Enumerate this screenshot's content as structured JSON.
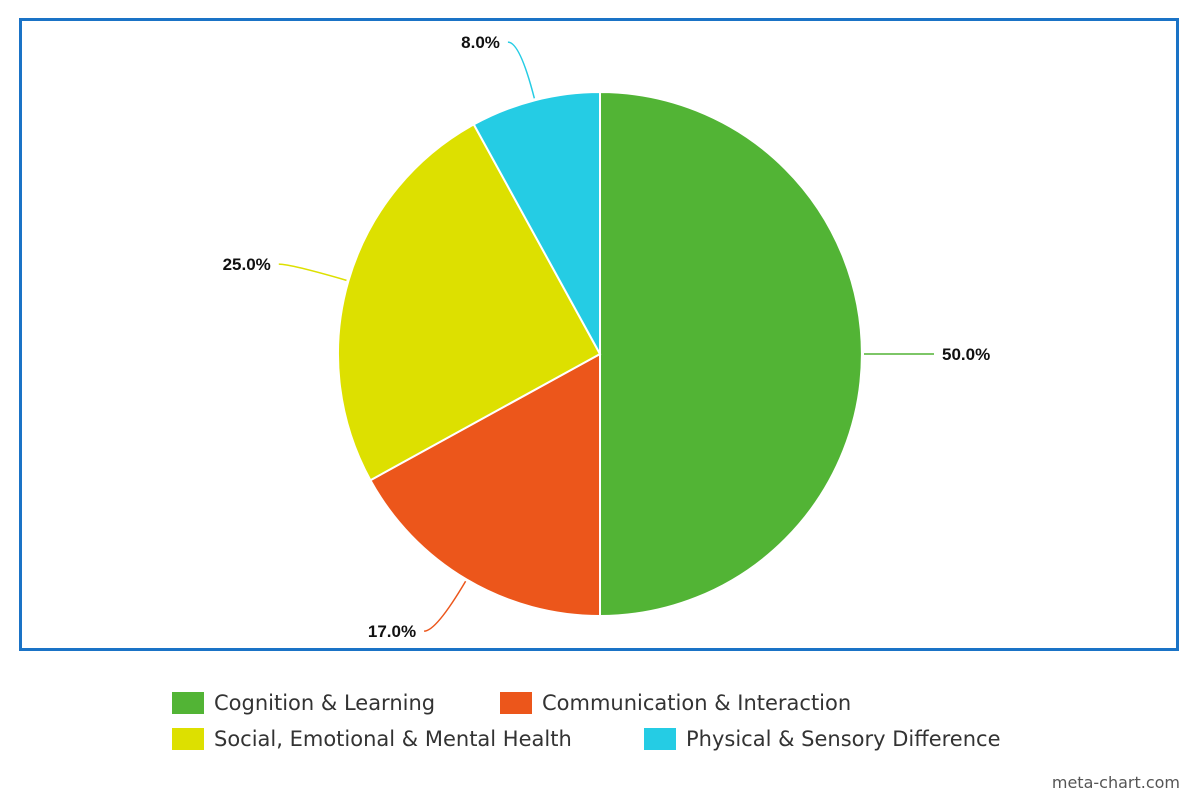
{
  "chart_data": {
    "type": "pie",
    "title": "",
    "slices": [
      {
        "label": "Cognition & Learning",
        "value": 50.0,
        "display": "50.0%",
        "color": "#52b435"
      },
      {
        "label": "Communication & Interaction",
        "value": 17.0,
        "display": "17.0%",
        "color": "#ec561b"
      },
      {
        "label": "Social, Emotional & Mental Health",
        "value": 25.0,
        "display": "25.0%",
        "color": "#dde000"
      },
      {
        "label": "Physical & Sensory Difference",
        "value": 8.0,
        "display": "8.0%",
        "color": "#25cce4"
      }
    ],
    "start_angle_deg": 0,
    "direction": "clockwise",
    "legend_placement": "bottom"
  },
  "frame_color": "#1a73c6",
  "legend": {
    "items": [
      {
        "label": "Cognition & Learning",
        "color": "#52b435"
      },
      {
        "label": "Communication & Interaction",
        "color": "#ec561b"
      },
      {
        "label": "Social, Emotional & Mental Health",
        "color": "#dde000"
      },
      {
        "label": "Physical & Sensory Difference",
        "color": "#25cce4"
      }
    ]
  },
  "watermark": "meta-chart.com"
}
